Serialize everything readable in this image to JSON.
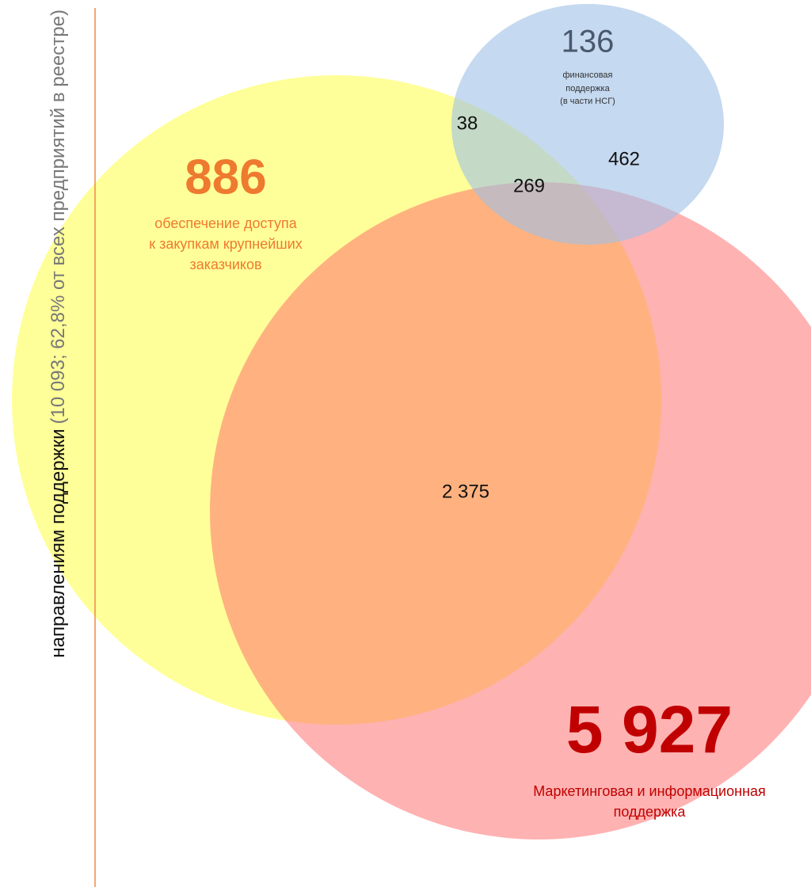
{
  "axis_title": {
    "bold_part": "направлениям поддержки",
    "rest": "(10 093; 62,8% от всех предприятий в реестре)"
  },
  "sets": [
    {
      "value": "886",
      "label_lines": [
        "обеспечение доступа",
        "к закупкам крупнейших",
        "заказчиков"
      ]
    },
    {
      "value": "5 927",
      "label_lines": [
        "Маркетинговая и информационная",
        "поддержка"
      ]
    },
    {
      "value": "136",
      "label_lines": [
        "финансовая",
        "поддержка",
        "(в части НСГ)"
      ]
    }
  ],
  "intersections": [
    {
      "sets": "yellow-blue",
      "value": "38"
    },
    {
      "sets": "red-blue",
      "value": "462"
    },
    {
      "sets": "all",
      "value": "269"
    },
    {
      "sets": "yellow-red",
      "value": "2 375"
    }
  ]
}
